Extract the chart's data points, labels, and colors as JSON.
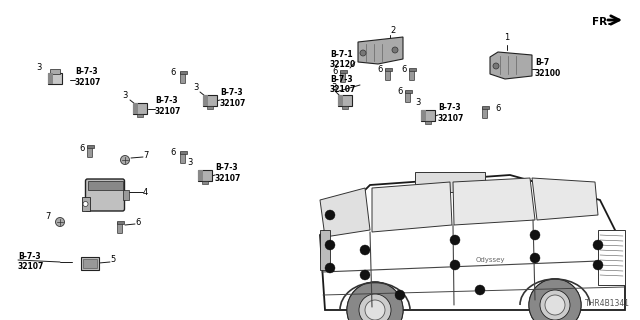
{
  "background_color": "#ffffff",
  "part_number_bottom": "THR4B1341",
  "fr_arrow_text": "FR.",
  "label_b7_1": "B-7-1\n32120",
  "label_b7": "B-7\n32100",
  "label_b73": "B-7-3\n32107",
  "figsize": [
    6.4,
    3.2
  ],
  "dpi": 100,
  "line_color": "#1a1a1a",
  "text_color": "#000000",
  "part_gray": "#888888",
  "part_light": "#cccccc",
  "part_dark": "#444444",
  "screw_color": "#555555"
}
